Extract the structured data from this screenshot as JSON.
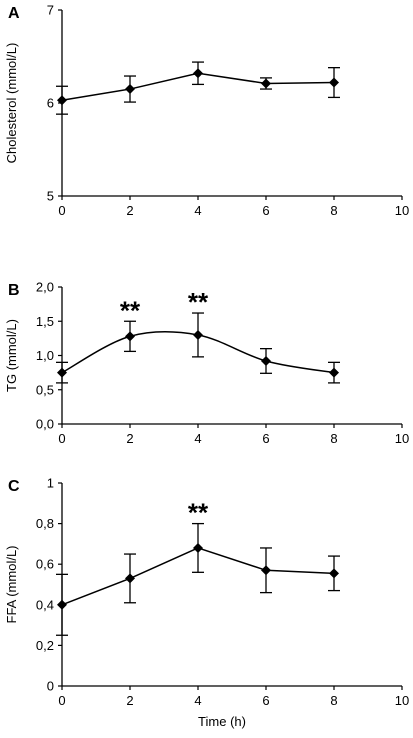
{
  "chart_data": [
    {
      "type": "line",
      "panel": "A",
      "ylabel": "Cholesterol (mmol/L)",
      "xlabel": "",
      "xlim": [
        0,
        10
      ],
      "ylim": [
        5,
        7
      ],
      "xticks": [
        "0",
        "2",
        "4",
        "6",
        "8",
        "10"
      ],
      "yticks": [
        "5",
        "6",
        "7"
      ],
      "x": [
        0,
        2,
        4,
        6,
        8
      ],
      "y": [
        6.03,
        6.15,
        6.32,
        6.21,
        6.22
      ],
      "err": [
        0.15,
        0.14,
        0.12,
        0.06,
        0.16
      ],
      "significance": [],
      "smooth": false
    },
    {
      "type": "line",
      "panel": "B",
      "ylabel": "TG (mmol/L)",
      "xlabel": "",
      "xlim": [
        0,
        10
      ],
      "ylim": [
        0,
        2
      ],
      "xticks": [
        "0",
        "2",
        "4",
        "6",
        "8",
        "10"
      ],
      "yticks": [
        "0,0",
        "0,5",
        "1,0",
        "1,5",
        "2,0"
      ],
      "x": [
        0,
        2,
        4,
        6,
        8
      ],
      "y": [
        0.75,
        1.28,
        1.3,
        0.92,
        0.75
      ],
      "err": [
        0.15,
        0.22,
        0.32,
        0.18,
        0.15
      ],
      "significance": [
        {
          "x": 2,
          "label": "**"
        },
        {
          "x": 4,
          "label": "**"
        }
      ],
      "smooth": true
    },
    {
      "type": "line",
      "panel": "C",
      "ylabel": "FFA (mmol/L)",
      "xlabel": "Time (h)",
      "xlim": [
        0,
        10
      ],
      "ylim": [
        0,
        1
      ],
      "xticks": [
        "0",
        "2",
        "4",
        "6",
        "8",
        "10"
      ],
      "yticks": [
        "0",
        "0,2",
        "0,4",
        "0,6",
        "0,8",
        "1"
      ],
      "x": [
        0,
        2,
        4,
        6,
        8
      ],
      "y": [
        0.4,
        0.53,
        0.68,
        0.57,
        0.555
      ],
      "err": [
        0.15,
        0.12,
        0.12,
        0.11,
        0.085
      ],
      "significance": [
        {
          "x": 4,
          "label": "**"
        }
      ],
      "smooth": false
    }
  ]
}
